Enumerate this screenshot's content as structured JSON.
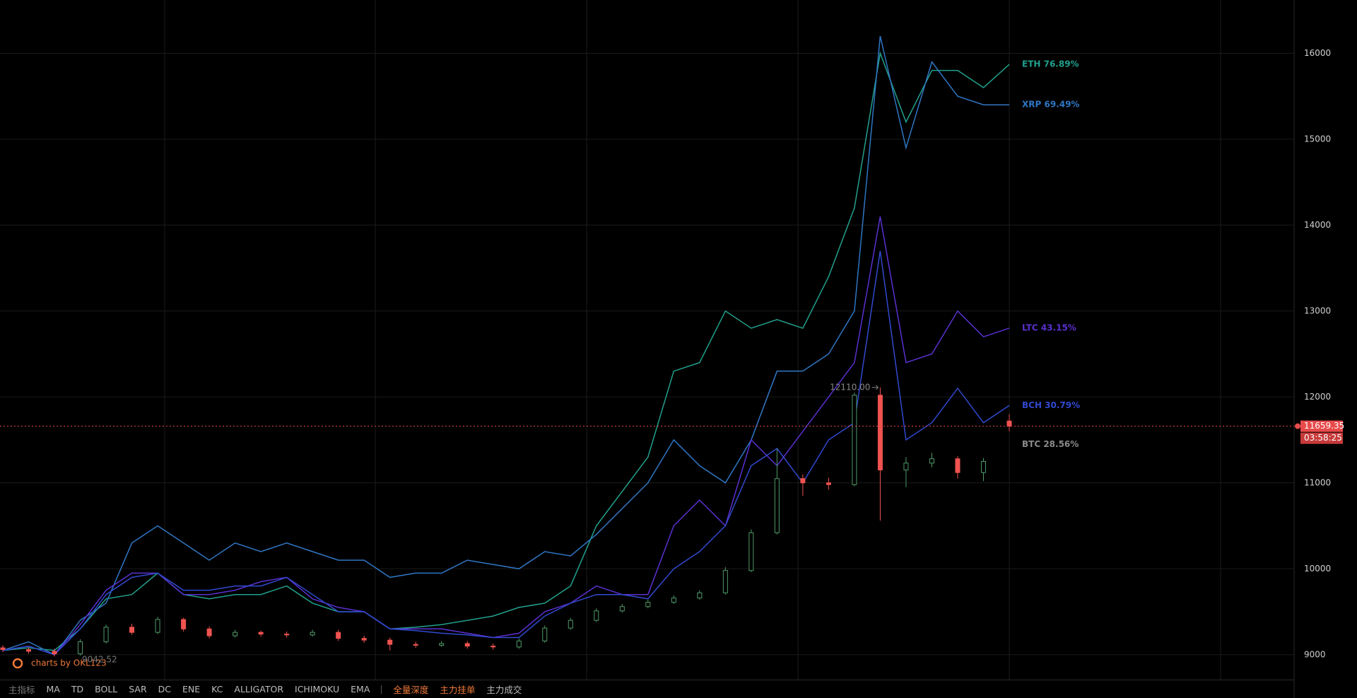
{
  "chart_data": {
    "type": "line",
    "categories": [
      null,
      null,
      null,
      null,
      null,
      null,
      null,
      null,
      null,
      null,
      null,
      null,
      null,
      null,
      null,
      null,
      null,
      null,
      null,
      null,
      null,
      null,
      null,
      null,
      null,
      null,
      null,
      null,
      null,
      null,
      null,
      null,
      null,
      null,
      null,
      null,
      null,
      null,
      null,
      null
    ],
    "ylim": [
      8710,
      16620
    ],
    "yticks": [
      9000,
      10000,
      11000,
      12000,
      13000,
      14000,
      15000,
      16000
    ],
    "grid": true,
    "series": [
      {
        "name": "ETH 76.89%",
        "color": "#22a08c",
        "values": [
          9050,
          9080,
          9050,
          9300,
          9650,
          9700,
          9950,
          9700,
          9650,
          9700,
          9700,
          9800,
          9600,
          9500,
          9500,
          9300,
          9320,
          9350,
          9400,
          9450,
          9550,
          9600,
          9800,
          10500,
          10900,
          11300,
          12300,
          12400,
          13000,
          12800,
          12900,
          12800,
          13400,
          14200,
          16000,
          15200,
          15800,
          15800,
          15600,
          15870
        ]
      },
      {
        "name": "XRP 69.49%",
        "color": "#2f76c4",
        "values": [
          9050,
          9150,
          9000,
          9400,
          9600,
          10300,
          10500,
          10300,
          10100,
          10300,
          10200,
          10300,
          10200,
          10100,
          10100,
          9900,
          9950,
          9950,
          10100,
          10050,
          10000,
          10200,
          10150,
          10400,
          10700,
          11000,
          11500,
          11200,
          11000,
          11500,
          12300,
          12300,
          12500,
          13000,
          16200,
          14900,
          15900,
          15500,
          15400,
          15400
        ]
      },
      {
        "name": "LTC 43.15%",
        "color": "#5a30d0",
        "values": [
          9050,
          9100,
          9000,
          9350,
          9750,
          9950,
          9950,
          9700,
          9700,
          9750,
          9850,
          9900,
          9650,
          9550,
          9500,
          9300,
          9300,
          9300,
          9250,
          9200,
          9250,
          9500,
          9600,
          9800,
          9700,
          9700,
          10500,
          10800,
          10500,
          11500,
          11200,
          11600,
          12000,
          12400,
          14100,
          12400,
          12500,
          13000,
          12700,
          12800
        ]
      },
      {
        "name": "BCH 30.79%",
        "color": "#3149cf",
        "values": [
          9050,
          9100,
          9000,
          9300,
          9700,
          9900,
          9950,
          9750,
          9750,
          9800,
          9800,
          9900,
          9700,
          9500,
          9500,
          9300,
          9280,
          9250,
          9230,
          9200,
          9200,
          9450,
          9600,
          9700,
          9700,
          9650,
          10000,
          10200,
          10500,
          11200,
          11400,
          11000,
          11500,
          11700,
          13700,
          11500,
          11700,
          12100,
          11700,
          11900
        ]
      }
    ],
    "candles": {
      "name": "BTC 28.56%",
      "color": "#8a8a8a",
      "up_color": "#4f9a68",
      "down_color": "#ef5350",
      "open": [
        9080,
        9060,
        9040,
        9010,
        9150,
        9320,
        9260,
        9410,
        9300,
        9220,
        9260,
        9240,
        9230,
        9260,
        9190,
        9170,
        9120,
        9110,
        9130,
        9100,
        9090,
        9160,
        9310,
        9400,
        9510,
        9560,
        9610,
        9660,
        9720,
        9980,
        10420,
        11050,
        11000,
        10980,
        12020,
        11150,
        11230,
        11280,
        11120,
        11720
      ],
      "high": [
        9110,
        9090,
        9070,
        9180,
        9350,
        9360,
        9440,
        9430,
        9330,
        9290,
        9280,
        9270,
        9290,
        9290,
        9220,
        9200,
        9150,
        9160,
        9160,
        9130,
        9190,
        9340,
        9430,
        9540,
        9590,
        9640,
        9690,
        9750,
        10020,
        10460,
        11400,
        11100,
        11060,
        12050,
        12110,
        11300,
        11350,
        11310,
        11290,
        11800
      ],
      "low": [
        9030,
        9010,
        8980,
        8990,
        9130,
        9230,
        9240,
        9270,
        9190,
        9200,
        9210,
        9200,
        9210,
        9160,
        9140,
        9050,
        9080,
        9090,
        9070,
        9060,
        9070,
        9140,
        9290,
        9380,
        9490,
        9540,
        9590,
        9640,
        9700,
        9960,
        10400,
        10850,
        10920,
        10960,
        10560,
        10950,
        11180,
        11050,
        11020,
        11600
      ],
      "close": [
        9060,
        9040,
        9010,
        9150,
        9320,
        9260,
        9410,
        9300,
        9220,
        9260,
        9240,
        9230,
        9260,
        9190,
        9170,
        9120,
        9110,
        9130,
        9100,
        9090,
        9160,
        9310,
        9400,
        9510,
        9560,
        9610,
        9660,
        9720,
        9980,
        10420,
        11050,
        11000,
        10980,
        12020,
        11150,
        11230,
        11280,
        11120,
        11250,
        11659.35
      ]
    },
    "last_price": 11659.35,
    "countdown": "03:58:25",
    "high_marker": {
      "value": 12110,
      "label": "12110.00"
    },
    "low_marker": 9042.52,
    "watermark": "charts by OKL123",
    "toolbar": {
      "indicators": [
        "主指标",
        "MA",
        "TD",
        "BOLL",
        "SAR",
        "DC",
        "ENE",
        "KC",
        "ALLIGATOR",
        "ICHIMOKU",
        "EMA"
      ],
      "tabs": [
        "全量深度",
        "主力挂单",
        "主力成交"
      ]
    }
  }
}
